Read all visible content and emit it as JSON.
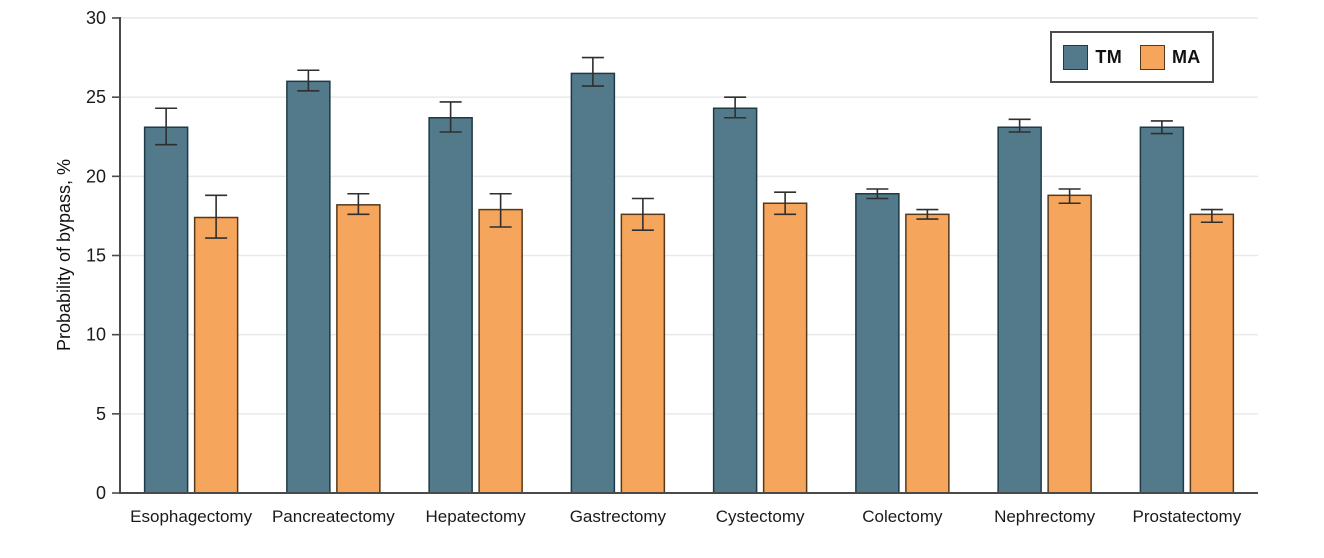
{
  "chart_data": {
    "type": "bar",
    "title": "",
    "xlabel": "",
    "ylabel": "Probability of bypass, %",
    "ylim": [
      0,
      30
    ],
    "yticks": [
      0,
      5,
      10,
      15,
      20,
      25,
      30
    ],
    "grid": true,
    "legend_position": "top-right",
    "error_bars": true,
    "axis_color": "#4a4a4a",
    "grid_color": "#e9e9e9",
    "error_bar_color": "#2f2f2f",
    "categories": [
      "Esophagectomy",
      "Pancreatectomy",
      "Hepatectomy",
      "Gastrectomy",
      "Cystectomy",
      "Colectomy",
      "Nephrectomy",
      "Prostatectomy"
    ],
    "series": [
      {
        "name": "TM",
        "color": "#527a8a",
        "border_color": "#1e3a46",
        "values": [
          23.1,
          26.0,
          23.7,
          26.5,
          24.3,
          18.9,
          23.1,
          23.1
        ],
        "ci_low": [
          22.0,
          25.4,
          22.8,
          25.7,
          23.7,
          18.6,
          22.8,
          22.7
        ],
        "ci_high": [
          24.3,
          26.7,
          24.7,
          27.5,
          25.0,
          19.2,
          23.6,
          23.5
        ]
      },
      {
        "name": "MA",
        "color": "#f5a55c",
        "border_color": "#54391a",
        "values": [
          17.4,
          18.2,
          17.9,
          17.6,
          18.3,
          17.6,
          18.8,
          17.6
        ],
        "ci_low": [
          16.1,
          17.6,
          16.8,
          16.6,
          17.6,
          17.3,
          18.3,
          17.1
        ],
        "ci_high": [
          18.8,
          18.9,
          18.9,
          18.6,
          19.0,
          17.9,
          19.2,
          17.9
        ]
      }
    ]
  }
}
